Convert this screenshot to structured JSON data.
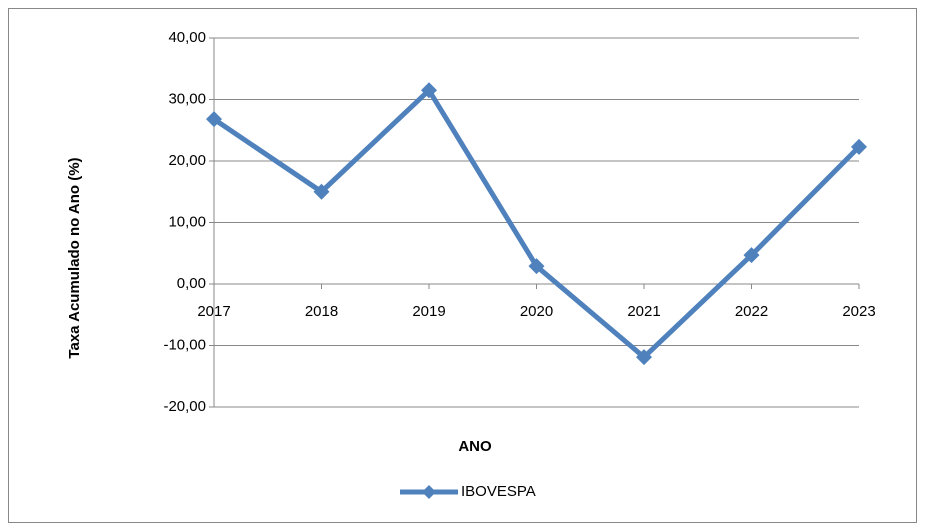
{
  "chart_data": {
    "type": "line",
    "x_label": "ANO",
    "y_label": "Taxa Acumulado no Ano (%)",
    "x": [
      2017,
      2018,
      2019,
      2020,
      2021,
      2022,
      2023
    ],
    "xlim": [
      2017,
      2023
    ],
    "xticks": [
      2017,
      2018,
      2019,
      2020,
      2021,
      2022,
      2023
    ],
    "ylim": [
      -20,
      40
    ],
    "yticks": [
      {
        "value": -20,
        "label": "-20,00"
      },
      {
        "value": -10,
        "label": "-10,00"
      },
      {
        "value": 0,
        "label": "0,00"
      },
      {
        "value": 10,
        "label": "10,00"
      },
      {
        "value": 20,
        "label": "20,00"
      },
      {
        "value": 30,
        "label": "30,00"
      },
      {
        "value": 40,
        "label": "40,00"
      }
    ],
    "grid": true,
    "legend": "bottom",
    "series": [
      {
        "name": "IBOVESPA",
        "color": "#4f81bd",
        "values": [
          26.8,
          15.0,
          31.5,
          2.9,
          -11.9,
          4.7,
          22.3
        ]
      }
    ]
  }
}
